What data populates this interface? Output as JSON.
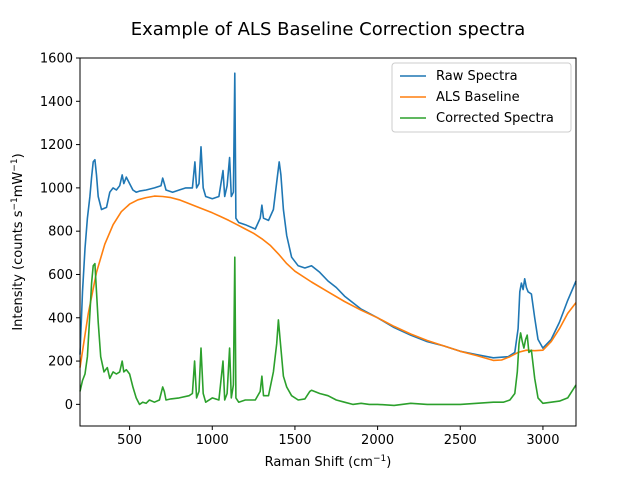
{
  "chart_data": {
    "type": "line",
    "title": "Example of ALS Baseline Correction spectra",
    "xlabel": "Raman Shift (cm$^{-1}$)",
    "ylabel": "Intensity (counts s$^{-1}$mW$^{-1}$)",
    "xlim": [
      200,
      3200
    ],
    "ylim": [
      -100,
      1600
    ],
    "xticks": [
      500,
      1000,
      1500,
      2000,
      2500,
      3000
    ],
    "yticks": [
      0,
      200,
      400,
      600,
      800,
      1000,
      1200,
      1400,
      1600
    ],
    "grid": false,
    "legend_position": "upper right",
    "series": [
      {
        "name": "Raw Spectra",
        "color": "#1f77b4",
        "points": [
          [
            200,
            230
          ],
          [
            215,
            520
          ],
          [
            230,
            720
          ],
          [
            245,
            860
          ],
          [
            260,
            960
          ],
          [
            270,
            1050
          ],
          [
            280,
            1120
          ],
          [
            290,
            1130
          ],
          [
            300,
            1060
          ],
          [
            310,
            960
          ],
          [
            330,
            900
          ],
          [
            360,
            910
          ],
          [
            380,
            980
          ],
          [
            400,
            1000
          ],
          [
            420,
            990
          ],
          [
            440,
            1010
          ],
          [
            455,
            1060
          ],
          [
            465,
            1020
          ],
          [
            480,
            1050
          ],
          [
            500,
            1020
          ],
          [
            520,
            990
          ],
          [
            540,
            980
          ],
          [
            560,
            985
          ],
          [
            600,
            990
          ],
          [
            650,
            1000
          ],
          [
            690,
            1010
          ],
          [
            700,
            1045
          ],
          [
            710,
            1020
          ],
          [
            720,
            990
          ],
          [
            760,
            980
          ],
          [
            800,
            990
          ],
          [
            840,
            1000
          ],
          [
            880,
            1000
          ],
          [
            895,
            1120
          ],
          [
            905,
            1000
          ],
          [
            920,
            1020
          ],
          [
            932,
            1190
          ],
          [
            945,
            1000
          ],
          [
            960,
            960
          ],
          [
            1000,
            950
          ],
          [
            1040,
            960
          ],
          [
            1065,
            1080
          ],
          [
            1075,
            960
          ],
          [
            1090,
            1010
          ],
          [
            1105,
            1140
          ],
          [
            1115,
            960
          ],
          [
            1128,
            980
          ],
          [
            1136,
            1530
          ],
          [
            1143,
            860
          ],
          [
            1160,
            840
          ],
          [
            1200,
            830
          ],
          [
            1260,
            810
          ],
          [
            1290,
            860
          ],
          [
            1300,
            920
          ],
          [
            1310,
            860
          ],
          [
            1340,
            850
          ],
          [
            1370,
            900
          ],
          [
            1395,
            1060
          ],
          [
            1405,
            1120
          ],
          [
            1415,
            1060
          ],
          [
            1430,
            900
          ],
          [
            1450,
            780
          ],
          [
            1480,
            680
          ],
          [
            1520,
            640
          ],
          [
            1560,
            630
          ],
          [
            1600,
            640
          ],
          [
            1650,
            610
          ],
          [
            1700,
            570
          ],
          [
            1750,
            540
          ],
          [
            1800,
            500
          ],
          [
            1900,
            440
          ],
          [
            2000,
            400
          ],
          [
            2100,
            355
          ],
          [
            2200,
            320
          ],
          [
            2300,
            290
          ],
          [
            2400,
            270
          ],
          [
            2500,
            245
          ],
          [
            2600,
            230
          ],
          [
            2700,
            215
          ],
          [
            2790,
            220
          ],
          [
            2830,
            240
          ],
          [
            2850,
            350
          ],
          [
            2860,
            520
          ],
          [
            2870,
            560
          ],
          [
            2880,
            530
          ],
          [
            2890,
            580
          ],
          [
            2900,
            540
          ],
          [
            2910,
            520
          ],
          [
            2930,
            510
          ],
          [
            2950,
            400
          ],
          [
            2970,
            300
          ],
          [
            3000,
            260
          ],
          [
            3050,
            300
          ],
          [
            3100,
            380
          ],
          [
            3150,
            480
          ],
          [
            3200,
            570
          ]
        ]
      },
      {
        "name": "ALS Baseline",
        "color": "#ff7f0e",
        "points": [
          [
            200,
            170
          ],
          [
            250,
            420
          ],
          [
            300,
            610
          ],
          [
            350,
            740
          ],
          [
            400,
            830
          ],
          [
            450,
            890
          ],
          [
            500,
            925
          ],
          [
            550,
            945
          ],
          [
            600,
            955
          ],
          [
            650,
            962
          ],
          [
            700,
            960
          ],
          [
            750,
            955
          ],
          [
            800,
            945
          ],
          [
            850,
            930
          ],
          [
            900,
            915
          ],
          [
            950,
            900
          ],
          [
            1000,
            885
          ],
          [
            1050,
            868
          ],
          [
            1100,
            850
          ],
          [
            1150,
            830
          ],
          [
            1200,
            810
          ],
          [
            1250,
            790
          ],
          [
            1300,
            765
          ],
          [
            1350,
            735
          ],
          [
            1400,
            695
          ],
          [
            1450,
            650
          ],
          [
            1500,
            615
          ],
          [
            1600,
            565
          ],
          [
            1700,
            520
          ],
          [
            1800,
            475
          ],
          [
            1900,
            435
          ],
          [
            2000,
            400
          ],
          [
            2100,
            360
          ],
          [
            2200,
            325
          ],
          [
            2300,
            295
          ],
          [
            2400,
            270
          ],
          [
            2500,
            245
          ],
          [
            2600,
            225
          ],
          [
            2700,
            203
          ],
          [
            2750,
            205
          ],
          [
            2800,
            220
          ],
          [
            2850,
            240
          ],
          [
            2900,
            250
          ],
          [
            2950,
            248
          ],
          [
            3000,
            250
          ],
          [
            3050,
            290
          ],
          [
            3100,
            350
          ],
          [
            3150,
            420
          ],
          [
            3200,
            470
          ]
        ]
      },
      {
        "name": "Corrected Spectra",
        "color": "#2ca02c",
        "points": [
          [
            200,
            60
          ],
          [
            215,
            110
          ],
          [
            230,
            140
          ],
          [
            245,
            220
          ],
          [
            260,
            420
          ],
          [
            270,
            560
          ],
          [
            280,
            640
          ],
          [
            290,
            650
          ],
          [
            300,
            520
          ],
          [
            310,
            380
          ],
          [
            325,
            220
          ],
          [
            345,
            150
          ],
          [
            365,
            170
          ],
          [
            380,
            120
          ],
          [
            400,
            150
          ],
          [
            420,
            140
          ],
          [
            440,
            150
          ],
          [
            455,
            200
          ],
          [
            465,
            150
          ],
          [
            480,
            160
          ],
          [
            500,
            140
          ],
          [
            520,
            80
          ],
          [
            540,
            30
          ],
          [
            560,
            0
          ],
          [
            580,
            10
          ],
          [
            600,
            5
          ],
          [
            620,
            20
          ],
          [
            650,
            10
          ],
          [
            680,
            20
          ],
          [
            700,
            80
          ],
          [
            710,
            60
          ],
          [
            720,
            20
          ],
          [
            750,
            25
          ],
          [
            800,
            30
          ],
          [
            860,
            40
          ],
          [
            880,
            50
          ],
          [
            893,
            200
          ],
          [
            905,
            30
          ],
          [
            920,
            60
          ],
          [
            932,
            260
          ],
          [
            945,
            50
          ],
          [
            960,
            10
          ],
          [
            1000,
            30
          ],
          [
            1040,
            20
          ],
          [
            1065,
            200
          ],
          [
            1075,
            20
          ],
          [
            1090,
            50
          ],
          [
            1105,
            260
          ],
          [
            1115,
            30
          ],
          [
            1128,
            90
          ],
          [
            1136,
            680
          ],
          [
            1143,
            30
          ],
          [
            1160,
            10
          ],
          [
            1200,
            20
          ],
          [
            1260,
            20
          ],
          [
            1290,
            60
          ],
          [
            1300,
            130
          ],
          [
            1310,
            40
          ],
          [
            1340,
            40
          ],
          [
            1370,
            150
          ],
          [
            1390,
            280
          ],
          [
            1400,
            390
          ],
          [
            1410,
            300
          ],
          [
            1430,
            130
          ],
          [
            1450,
            80
          ],
          [
            1480,
            40
          ],
          [
            1520,
            20
          ],
          [
            1560,
            25
          ],
          [
            1590,
            60
          ],
          [
            1600,
            65
          ],
          [
            1650,
            50
          ],
          [
            1700,
            40
          ],
          [
            1750,
            20
          ],
          [
            1800,
            10
          ],
          [
            1850,
            0
          ],
          [
            1900,
            5
          ],
          [
            1950,
            0
          ],
          [
            2000,
            0
          ],
          [
            2100,
            -5
          ],
          [
            2200,
            5
          ],
          [
            2300,
            0
          ],
          [
            2400,
            0
          ],
          [
            2500,
            0
          ],
          [
            2600,
            5
          ],
          [
            2700,
            10
          ],
          [
            2760,
            10
          ],
          [
            2800,
            20
          ],
          [
            2830,
            50
          ],
          [
            2845,
            150
          ],
          [
            2855,
            280
          ],
          [
            2865,
            330
          ],
          [
            2875,
            290
          ],
          [
            2885,
            260
          ],
          [
            2895,
            300
          ],
          [
            2905,
            320
          ],
          [
            2915,
            240
          ],
          [
            2930,
            250
          ],
          [
            2950,
            120
          ],
          [
            2970,
            30
          ],
          [
            3000,
            5
          ],
          [
            3050,
            10
          ],
          [
            3100,
            15
          ],
          [
            3150,
            30
          ],
          [
            3200,
            90
          ]
        ]
      }
    ]
  }
}
